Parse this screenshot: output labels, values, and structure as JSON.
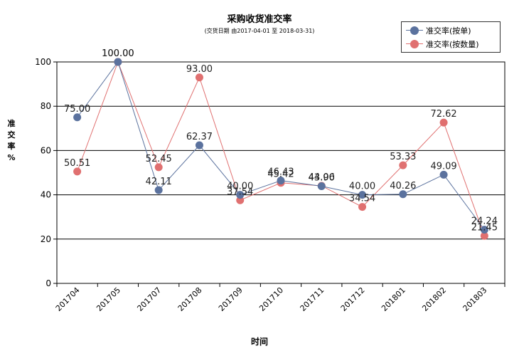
{
  "chart_data": {
    "type": "line",
    "title": "采购收货准交率",
    "subtitle": "(交货日期 由2017-04-01 至 2018-03-31)",
    "xlabel": "时间",
    "ylabel": "准交率%",
    "ylim": [
      0,
      100
    ],
    "yticks": [
      "0",
      "20",
      "40",
      "60",
      "80",
      "100"
    ],
    "grid": true,
    "legend_position": "top-right",
    "categories": [
      "201704",
      "201705",
      "201707",
      "201708",
      "201709",
      "201710",
      "201711",
      "201712",
      "201801",
      "201802",
      "201803"
    ],
    "series": [
      {
        "name": "准交率(按单)",
        "color": "#5b729e",
        "values": [
          75.0,
          100.0,
          42.11,
          62.37,
          40.0,
          46.43,
          43.9,
          40.0,
          40.26,
          49.09,
          24.24
        ],
        "labels": [
          "75.00",
          "100.00",
          "42.11",
          "62.37",
          "40.00",
          "46.43",
          "43.90",
          "40.00",
          "40.26",
          "49.09",
          "24.24"
        ]
      },
      {
        "name": "准交率(按数量)",
        "color": "#e07070",
        "values": [
          50.51,
          100.0,
          52.45,
          93.0,
          37.54,
          45.42,
          44.06,
          34.54,
          53.33,
          72.62,
          21.45
        ],
        "labels": [
          "50.51",
          "100.00",
          "52.45",
          "93.00",
          "37.54",
          "45.42",
          "44.06",
          "34.54",
          "53.33",
          "72.62",
          "21.45"
        ]
      }
    ]
  }
}
